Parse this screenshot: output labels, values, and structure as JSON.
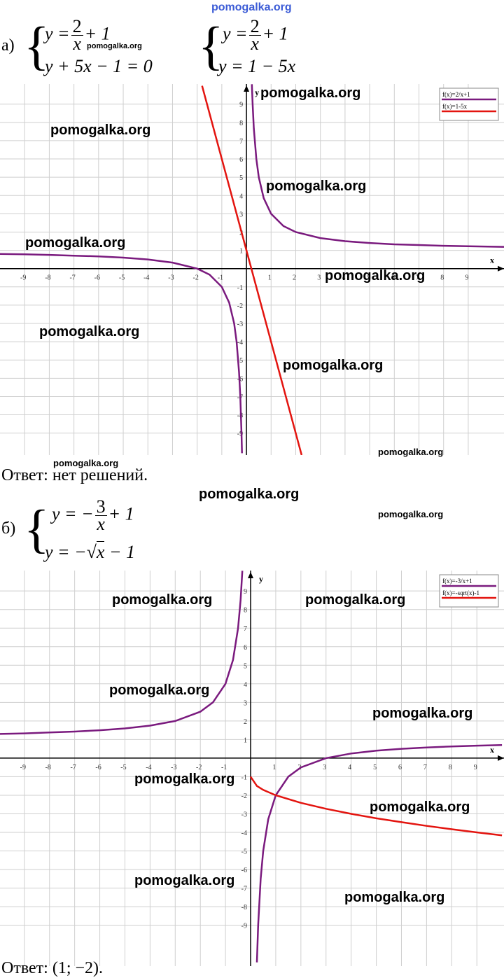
{
  "watermarks": [
    "pomogalka.org",
    "pomogalka.org",
    "pomogalka.org",
    "pomogalka.org",
    "pomogalka.org",
    "pomogalka.org",
    "pomogalka.org",
    "pomogalka.org",
    "pomogalka.org",
    "pomogalka.org",
    "pomogalka.org",
    "pomogalka.org",
    "pomogalka.org",
    "pomogalka.org",
    "pomogalka.org",
    "pomogalka.org",
    "pomogalka.org",
    "pomogalka.org",
    "pomogalka.org",
    "pomogalka.org",
    "pomogalka.org"
  ],
  "part_a": {
    "label": "а)",
    "system_1": {
      "eq_1": {
        "lhs": "y =",
        "numerator": "2",
        "denominator": "x",
        "rest": "+ 1"
      },
      "eq_2": "y + 5x − 1 = 0"
    },
    "system_2": {
      "eq_1": {
        "lhs": "y =",
        "numerator": "2",
        "denominator": "x",
        "rest": "+ 1"
      },
      "eq_2": "y = 1 − 5x"
    },
    "answer": "Ответ: нет решений."
  },
  "part_b": {
    "label": "б)",
    "system": {
      "eq_1": {
        "lhs": "y = −",
        "numerator": "3",
        "denominator": "x",
        "rest": "+ 1"
      },
      "eq_2": {
        "lhs": "y = −",
        "radical": "√",
        "radicand": "x",
        "rest": "− 1"
      }
    },
    "answer": "Ответ: (1;  −2)."
  },
  "chart_data": [
    {
      "type": "line",
      "x_label": "x",
      "y_label": "y",
      "xlim": [
        -10,
        10.45
      ],
      "ylim": [
        -10.2,
        10.1
      ],
      "xticks": [
        -9,
        -8,
        -7,
        -6,
        -5,
        -4,
        -3,
        -2,
        -1,
        1,
        2,
        3,
        4,
        5,
        6,
        7,
        8,
        9
      ],
      "yticks": [
        -9,
        -8,
        -7,
        -6,
        -5,
        -4,
        -3,
        -2,
        -1,
        1,
        2,
        3,
        4,
        5,
        6,
        7,
        8,
        9
      ],
      "grid": true,
      "legend": "upper right",
      "series": [
        {
          "name": "f(x)=2/x+1",
          "color": "#7a1a7e",
          "x": [
            -10,
            -9,
            -8,
            -7,
            -6,
            -5,
            -4,
            -3,
            -2,
            -1.5,
            -1,
            -0.7,
            -0.5,
            -0.4,
            -0.3,
            -0.25,
            -0.2,
            -0.18,
            0,
            0.22,
            0.25,
            0.3,
            0.4,
            0.5,
            0.7,
            1,
            1.5,
            2,
            3,
            4,
            5,
            6,
            7,
            8,
            9,
            10,
            10.45
          ],
          "values": [
            0.8,
            0.78,
            0.75,
            0.71,
            0.67,
            0.6,
            0.5,
            0.33,
            0,
            -0.33,
            -1,
            -1.86,
            -3,
            -4,
            -5.67,
            -7,
            -9,
            -10.1,
            null,
            10.09,
            9,
            7.67,
            6,
            5,
            3.86,
            3,
            2.33,
            2,
            1.67,
            1.5,
            1.4,
            1.33,
            1.29,
            1.25,
            1.22,
            1.2,
            1.19
          ]
        },
        {
          "name": "f(x)=1-5x",
          "color": "#e3140f",
          "x": [
            -1.8,
            2.24
          ],
          "values": [
            10,
            -10.2
          ]
        }
      ]
    },
    {
      "type": "line",
      "x_label": "x",
      "y_label": "y",
      "xlim": [
        -9.97,
        10.08
      ],
      "ylim": [
        -11.2,
        10.1
      ],
      "xticks": [
        -9,
        -8,
        -7,
        -6,
        -5,
        -4,
        -3,
        -2,
        -1,
        1,
        2,
        3,
        4,
        5,
        6,
        7,
        8,
        9
      ],
      "yticks": [
        -9,
        -8,
        -7,
        -6,
        -5,
        -4,
        -3,
        -2,
        -1,
        1,
        2,
        3,
        4,
        5,
        6,
        7,
        8,
        9
      ],
      "grid": true,
      "legend": "upper right",
      "series": [
        {
          "name": "f(x)=-3/x+1",
          "color": "#7a1a7e",
          "x": [
            -10,
            -9,
            -8,
            -7,
            -6,
            -5,
            -4,
            -3,
            -2,
            -1.5,
            -1,
            -0.7,
            -0.5,
            -0.4,
            -0.33,
            0,
            0.25,
            0.3,
            0.4,
            0.5,
            0.7,
            1,
            1.5,
            2,
            3,
            4,
            5,
            6,
            7,
            8,
            9,
            10
          ],
          "values": [
            1.3,
            1.33,
            1.38,
            1.43,
            1.5,
            1.6,
            1.75,
            2,
            2.5,
            3,
            4,
            5.29,
            7,
            8.5,
            10.09,
            null,
            -11,
            -9,
            -6.5,
            -5,
            -3.29,
            -2,
            -1,
            -0.5,
            0,
            0.25,
            0.4,
            0.5,
            0.57,
            0.63,
            0.67,
            0.7
          ]
        },
        {
          "name": "f(x)=-sqrt(x)-1",
          "color": "#e3140f",
          "x": [
            0,
            0.25,
            0.5,
            1,
            2,
            3,
            4,
            5,
            6,
            7,
            8,
            9,
            10
          ],
          "values": [
            -1,
            -1.5,
            -1.71,
            -2,
            -2.41,
            -2.73,
            -3,
            -3.24,
            -3.45,
            -3.65,
            -3.83,
            -4,
            -4.16
          ]
        }
      ]
    }
  ]
}
